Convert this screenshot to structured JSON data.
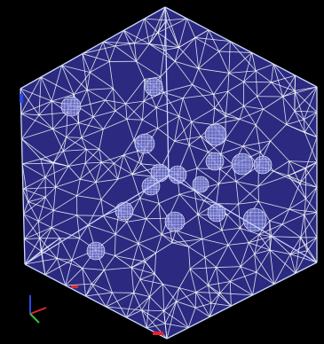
{
  "viewer": {
    "background_color": "#000000",
    "cube_face_color": "#2b2a80",
    "mesh_line_color": "#ffffff",
    "inclusion_color": "#7a7fd8"
  },
  "axis_triad": {
    "x_color": "#e0262b",
    "y_color": "#34c43a",
    "z_color": "#2b4be8"
  },
  "inclusions": [
    {
      "name": "inclusion-1"
    },
    {
      "name": "inclusion-2"
    },
    {
      "name": "inclusion-3"
    },
    {
      "name": "inclusion-4"
    },
    {
      "name": "inclusion-5"
    },
    {
      "name": "inclusion-6"
    },
    {
      "name": "inclusion-7"
    },
    {
      "name": "inclusion-8"
    },
    {
      "name": "inclusion-9"
    },
    {
      "name": "inclusion-10"
    },
    {
      "name": "inclusion-11"
    },
    {
      "name": "inclusion-12"
    },
    {
      "name": "inclusion-13"
    },
    {
      "name": "inclusion-14"
    },
    {
      "name": "inclusion-15"
    },
    {
      "name": "inclusion-16"
    }
  ]
}
